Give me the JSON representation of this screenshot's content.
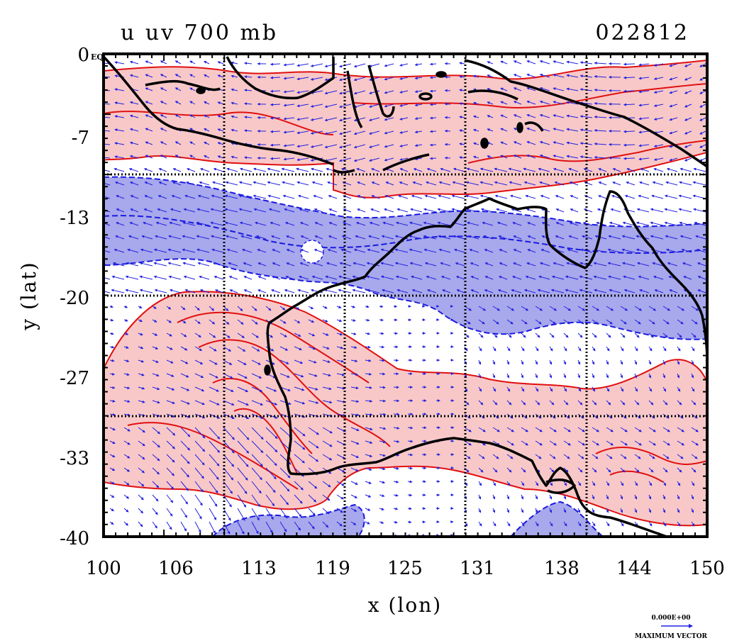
{
  "title": {
    "left": "u uv 700 mb",
    "right": "022812"
  },
  "axes": {
    "xlabel": "x (lon)",
    "ylabel": "y (lat)",
    "x_ticks": [
      "100",
      "106",
      "113",
      "119",
      "125",
      "131",
      "138",
      "144",
      "150"
    ],
    "y_ticks": [
      "0",
      "-7",
      "-13",
      "-20",
      "-27",
      "-33",
      "-40"
    ],
    "y_top_suffix": "EQ",
    "xlim": [
      100,
      150
    ],
    "ylim": [
      -40,
      0
    ]
  },
  "legend": {
    "value": "0.000E+00",
    "caption": "MAXIMUM VECTOR"
  },
  "colors": {
    "positive_fill": "#f8c8c8",
    "positive_line": "#e01010",
    "negative_fill": "#a8a8ec",
    "negative_line": "#1a1ae0",
    "coast": "#000000",
    "vector": "#2020e0",
    "grid": "#000000"
  },
  "map": {
    "variable": "u",
    "vectors": "uv",
    "level": "700 mb",
    "shading": [
      {
        "sign": "positive",
        "region": "equatorial band 0 to -12"
      },
      {
        "sign": "negative",
        "region": "band -12 to -24"
      },
      {
        "sign": "positive",
        "region": "southwest maximum near 113E -30"
      },
      {
        "sign": "negative",
        "region": "southern edge -37 to -40"
      }
    ]
  }
}
